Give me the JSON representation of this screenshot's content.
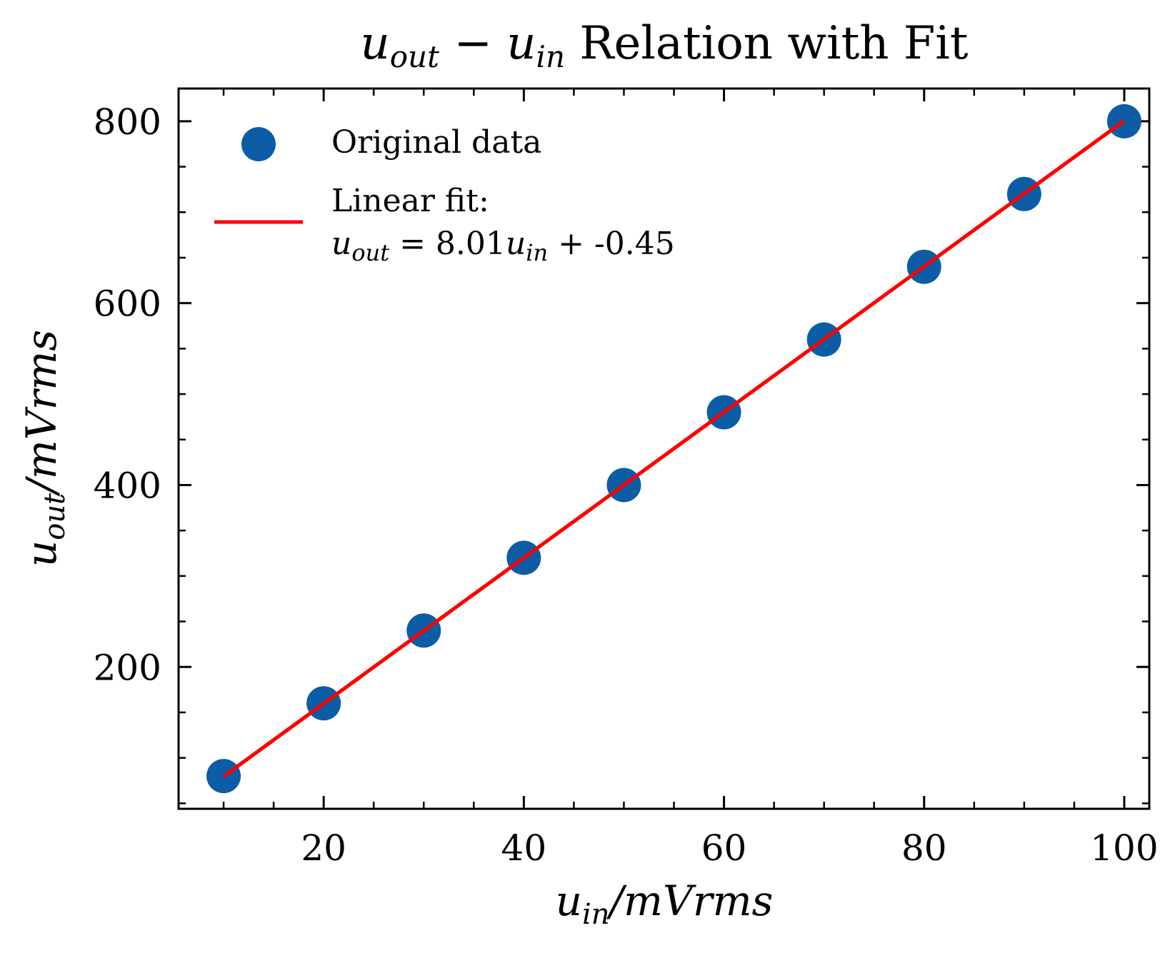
{
  "chart_data": {
    "type": "scatter",
    "title": "u_out − u_in Relation with Fit",
    "title_parts": {
      "var1_base": "u",
      "var1_sub": "out",
      "minus": "−",
      "var2_base": "u",
      "var2_sub": "in",
      "rest": " Relation with Fit"
    },
    "xlabel": "u_in/mVrms",
    "xlabel_parts": {
      "base": "u",
      "sub": "in",
      "rest": "/mVrms"
    },
    "ylabel": "u_out/mVrms",
    "ylabel_parts": {
      "base": "u",
      "sub": "out",
      "rest": "/mVrms"
    },
    "xlim": [
      5.5,
      102.5
    ],
    "ylim": [
      44,
      836
    ],
    "x_ticks": [
      20,
      40,
      60,
      80,
      100
    ],
    "x_tick_labels": [
      "20",
      "40",
      "60",
      "80",
      "100"
    ],
    "x_minor_ticks": [
      10,
      15,
      25,
      30,
      35,
      45,
      50,
      55,
      65,
      70,
      75,
      85,
      90,
      95
    ],
    "y_ticks": [
      200,
      400,
      600,
      800
    ],
    "y_tick_labels": [
      "200",
      "400",
      "600",
      "800"
    ],
    "y_minor_ticks": [
      50,
      100,
      150,
      250,
      300,
      350,
      450,
      500,
      550,
      650,
      700,
      750
    ],
    "grid": false,
    "legend_position": "top-left",
    "series": [
      {
        "name": "Original data",
        "kind": "scatter",
        "color": "#0C5DA5",
        "x": [
          10,
          20,
          30,
          40,
          50,
          60,
          70,
          80,
          90,
          100
        ],
        "y": [
          80,
          160,
          240,
          320,
          400,
          480,
          560,
          640,
          720,
          800
        ]
      },
      {
        "name": "Linear fit: u_out = 8.01u_in + -0.45",
        "kind": "line",
        "color": "#FF0000",
        "slope": 8.01,
        "intercept": -0.45,
        "x": [
          10,
          100
        ],
        "y": [
          79.65,
          800.55
        ]
      }
    ],
    "legend": {
      "scatter_label": "Original data",
      "fit_label_line1": "Linear fit:",
      "fit_label_line2": {
        "base": "u",
        "sub": "out",
        "eq": " = 8.01",
        "base2": "u",
        "sub2": "in",
        "rest": " + -0.45"
      }
    }
  }
}
